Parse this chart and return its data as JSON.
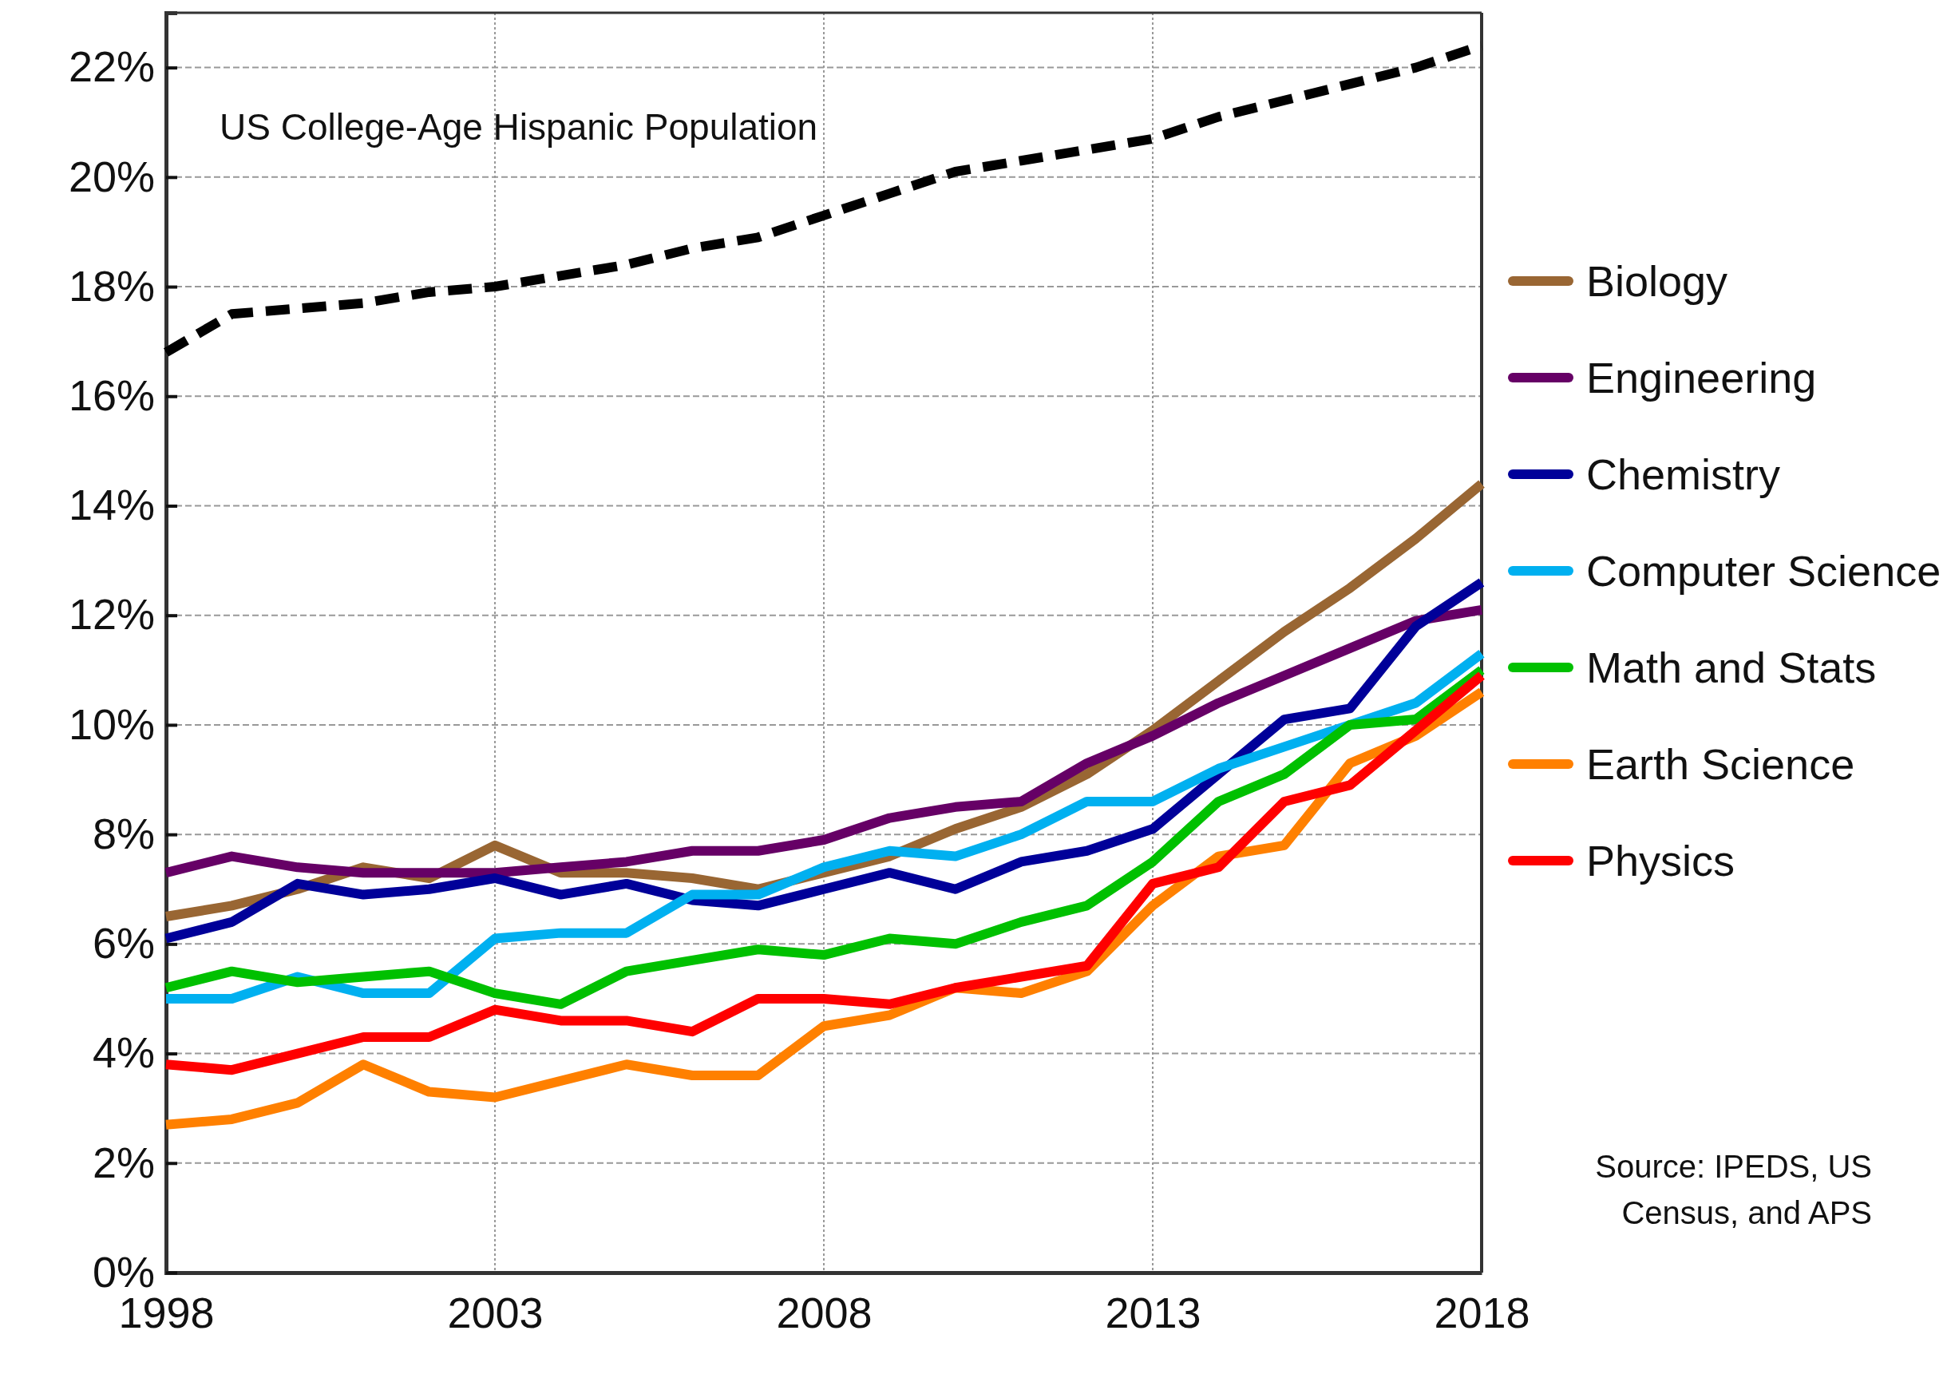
{
  "chart_data": {
    "type": "line",
    "x": [
      1998,
      1999,
      2000,
      2001,
      2002,
      2003,
      2004,
      2005,
      2006,
      2007,
      2008,
      2009,
      2010,
      2011,
      2012,
      2013,
      2014,
      2015,
      2016,
      2017,
      2018
    ],
    "series": [
      {
        "name": "US College-Age Hispanic Population",
        "color": "#000000",
        "line_style": "dashed",
        "values": [
          16.8,
          17.5,
          17.6,
          17.7,
          17.9,
          18.0,
          18.2,
          18.4,
          18.7,
          18.9,
          19.3,
          19.7,
          20.1,
          20.3,
          20.5,
          20.7,
          21.1,
          21.4,
          21.7,
          22.0,
          22.4
        ]
      },
      {
        "name": "Biology",
        "color": "#996633",
        "values": [
          6.5,
          6.7,
          7.0,
          7.4,
          7.2,
          7.8,
          7.3,
          7.3,
          7.2,
          7.0,
          7.3,
          7.6,
          8.1,
          8.5,
          9.1,
          9.9,
          10.8,
          11.7,
          12.5,
          13.4,
          14.4
        ]
      },
      {
        "name": "Engineering",
        "color": "#660066",
        "values": [
          7.3,
          7.6,
          7.4,
          7.3,
          7.3,
          7.3,
          7.4,
          7.5,
          7.7,
          7.7,
          7.9,
          8.3,
          8.5,
          8.6,
          9.3,
          9.8,
          10.4,
          10.9,
          11.4,
          11.9,
          12.1
        ]
      },
      {
        "name": "Chemistry",
        "color": "#000099",
        "values": [
          6.1,
          6.4,
          7.1,
          6.9,
          7.0,
          7.2,
          6.9,
          7.1,
          6.8,
          6.7,
          7.0,
          7.3,
          7.0,
          7.5,
          7.7,
          8.1,
          9.1,
          10.1,
          10.3,
          11.8,
          12.6
        ]
      },
      {
        "name": "Computer Science",
        "color": "#00b0f0",
        "values": [
          5.0,
          5.0,
          5.4,
          5.1,
          5.1,
          6.1,
          6.2,
          6.2,
          6.9,
          6.9,
          7.4,
          7.7,
          7.6,
          8.0,
          8.6,
          8.6,
          9.2,
          9.6,
          10.0,
          10.4,
          11.3
        ]
      },
      {
        "name": "Math and Stats",
        "color": "#00c000",
        "values": [
          5.2,
          5.5,
          5.3,
          5.4,
          5.5,
          5.1,
          4.9,
          5.5,
          5.7,
          5.9,
          5.8,
          6.1,
          6.0,
          6.4,
          6.7,
          7.5,
          8.6,
          9.1,
          10.0,
          10.1,
          11.0
        ]
      },
      {
        "name": "Earth Science",
        "color": "#ff8000",
        "values": [
          2.7,
          2.8,
          3.1,
          3.8,
          3.3,
          3.2,
          3.5,
          3.8,
          3.6,
          3.6,
          4.5,
          4.7,
          5.2,
          5.1,
          5.5,
          6.7,
          7.6,
          7.8,
          9.3,
          9.8,
          10.6
        ]
      },
      {
        "name": "Physics",
        "color": "#ff0000",
        "values": [
          3.8,
          3.7,
          4.0,
          4.3,
          4.3,
          4.8,
          4.6,
          4.6,
          4.4,
          5.0,
          5.0,
          4.9,
          5.2,
          5.4,
          5.6,
          7.1,
          7.4,
          8.6,
          8.9,
          9.9,
          10.9
        ]
      }
    ],
    "xlim": [
      1998,
      2018
    ],
    "xticks": [
      1998,
      2003,
      2008,
      2013,
      2018
    ],
    "ylim": [
      0,
      23
    ],
    "yticks": [
      {
        "value": 0,
        "label": "0%"
      },
      {
        "value": 2,
        "label": "2%"
      },
      {
        "value": 4,
        "label": "4%"
      },
      {
        "value": 6,
        "label": "6%"
      },
      {
        "value": 8,
        "label": "8%"
      },
      {
        "value": 10,
        "label": "10%"
      },
      {
        "value": 12,
        "label": "12%"
      },
      {
        "value": 14,
        "label": "14%"
      },
      {
        "value": 16,
        "label": "16%"
      },
      {
        "value": 18,
        "label": "18%"
      },
      {
        "value": 20,
        "label": "20%"
      },
      {
        "value": 22,
        "label": "22%"
      }
    ],
    "grid": true,
    "legend": "right",
    "marker": "none",
    "annotations": [
      "Source: IPEDS, US Census, and APS"
    ]
  }
}
